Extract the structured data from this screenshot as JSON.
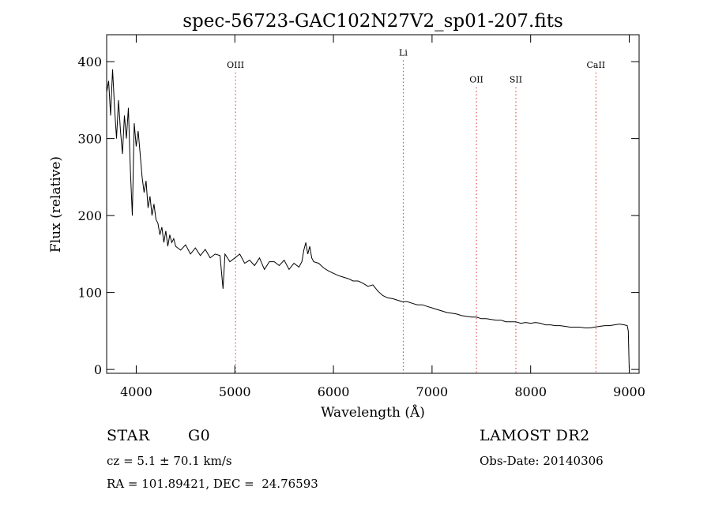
{
  "chart_data": {
    "type": "line",
    "title": "spec-56723-GAC102N27V2_sp01-207.fits",
    "xlabel": "Wavelength (Å)",
    "ylabel": "Flux (relative)",
    "xlim": [
      3700,
      9100
    ],
    "ylim": [
      -5,
      435
    ],
    "x_ticks": [
      4000,
      5000,
      6000,
      7000,
      8000,
      9000
    ],
    "y_ticks": [
      0,
      100,
      200,
      300,
      400
    ],
    "grid": false,
    "line_color": "#000000",
    "marker_color": "#e03030",
    "markers": [
      {
        "label": "OIII",
        "wavelength": 5007,
        "label_flux": 392
      },
      {
        "label": "Li",
        "wavelength": 6708,
        "label_flux": 408
      },
      {
        "label": "OII",
        "wavelength": 7450,
        "label_flux": 373
      },
      {
        "label": "SII",
        "wavelength": 7850,
        "label_flux": 373
      },
      {
        "label": "CaII",
        "wavelength": 8662,
        "label_flux": 392
      }
    ],
    "series": [
      {
        "x": [
          3700,
          3720,
          3740,
          3760,
          3780,
          3800,
          3820,
          3840,
          3860,
          3880,
          3900,
          3920,
          3940,
          3960,
          3980,
          4000,
          4020,
          4040,
          4060,
          4080,
          4100,
          4120,
          4140,
          4160,
          4180,
          4200,
          4220,
          4240,
          4260,
          4280,
          4300,
          4320,
          4340,
          4360,
          4380,
          4400,
          4450,
          4500,
          4550,
          4600,
          4650,
          4700,
          4750,
          4800,
          4850,
          4880,
          4900,
          4950,
          5000,
          5050,
          5100,
          5150,
          5200,
          5250,
          5300,
          5350,
          5400,
          5450,
          5500,
          5550,
          5600,
          5650,
          5680,
          5700,
          5720,
          5740,
          5760,
          5780,
          5800,
          5850,
          5900,
          5950,
          6000,
          6050,
          6100,
          6150,
          6200,
          6250,
          6300,
          6350,
          6400,
          6450,
          6500,
          6550,
          6600,
          6650,
          6700,
          6750,
          6800,
          6850,
          6900,
          6950,
          7000,
          7050,
          7100,
          7150,
          7200,
          7250,
          7300,
          7350,
          7400,
          7450,
          7500,
          7550,
          7600,
          7650,
          7700,
          7750,
          7800,
          7850,
          7900,
          7950,
          8000,
          8050,
          8100,
          8150,
          8200,
          8250,
          8300,
          8350,
          8400,
          8450,
          8500,
          8550,
          8600,
          8650,
          8700,
          8750,
          8800,
          8850,
          8900,
          8950,
          8980,
          8990,
          9000
        ],
        "y": [
          360,
          375,
          330,
          390,
          340,
          300,
          350,
          310,
          280,
          330,
          300,
          340,
          260,
          200,
          320,
          290,
          310,
          280,
          250,
          230,
          245,
          210,
          225,
          200,
          215,
          195,
          190,
          175,
          185,
          165,
          180,
          160,
          175,
          165,
          170,
          160,
          155,
          162,
          150,
          158,
          148,
          156,
          145,
          150,
          148,
          105,
          150,
          140,
          145,
          150,
          138,
          142,
          135,
          145,
          130,
          140,
          140,
          135,
          142,
          130,
          138,
          133,
          140,
          155,
          165,
          150,
          160,
          145,
          140,
          138,
          132,
          128,
          125,
          122,
          120,
          118,
          115,
          115,
          112,
          108,
          110,
          102,
          96,
          93,
          92,
          90,
          88,
          88,
          86,
          84,
          84,
          82,
          80,
          78,
          76,
          74,
          73,
          72,
          70,
          69,
          68,
          68,
          66,
          66,
          65,
          64,
          64,
          62,
          62,
          62,
          60,
          61,
          60,
          61,
          60,
          58,
          58,
          57,
          57,
          56,
          55,
          55,
          55,
          54,
          54,
          55,
          56,
          57,
          57,
          58,
          59,
          58,
          57,
          50,
          0
        ]
      }
    ]
  },
  "info": {
    "object_type": "STAR",
    "subclass": "G0",
    "survey": "LAMOST DR2",
    "cz": "cz = 5.1 ± 70.1 km/s",
    "obs_date": "Obs-Date: 20140306",
    "coords": "RA = 101.89421, DEC =  24.76593"
  }
}
